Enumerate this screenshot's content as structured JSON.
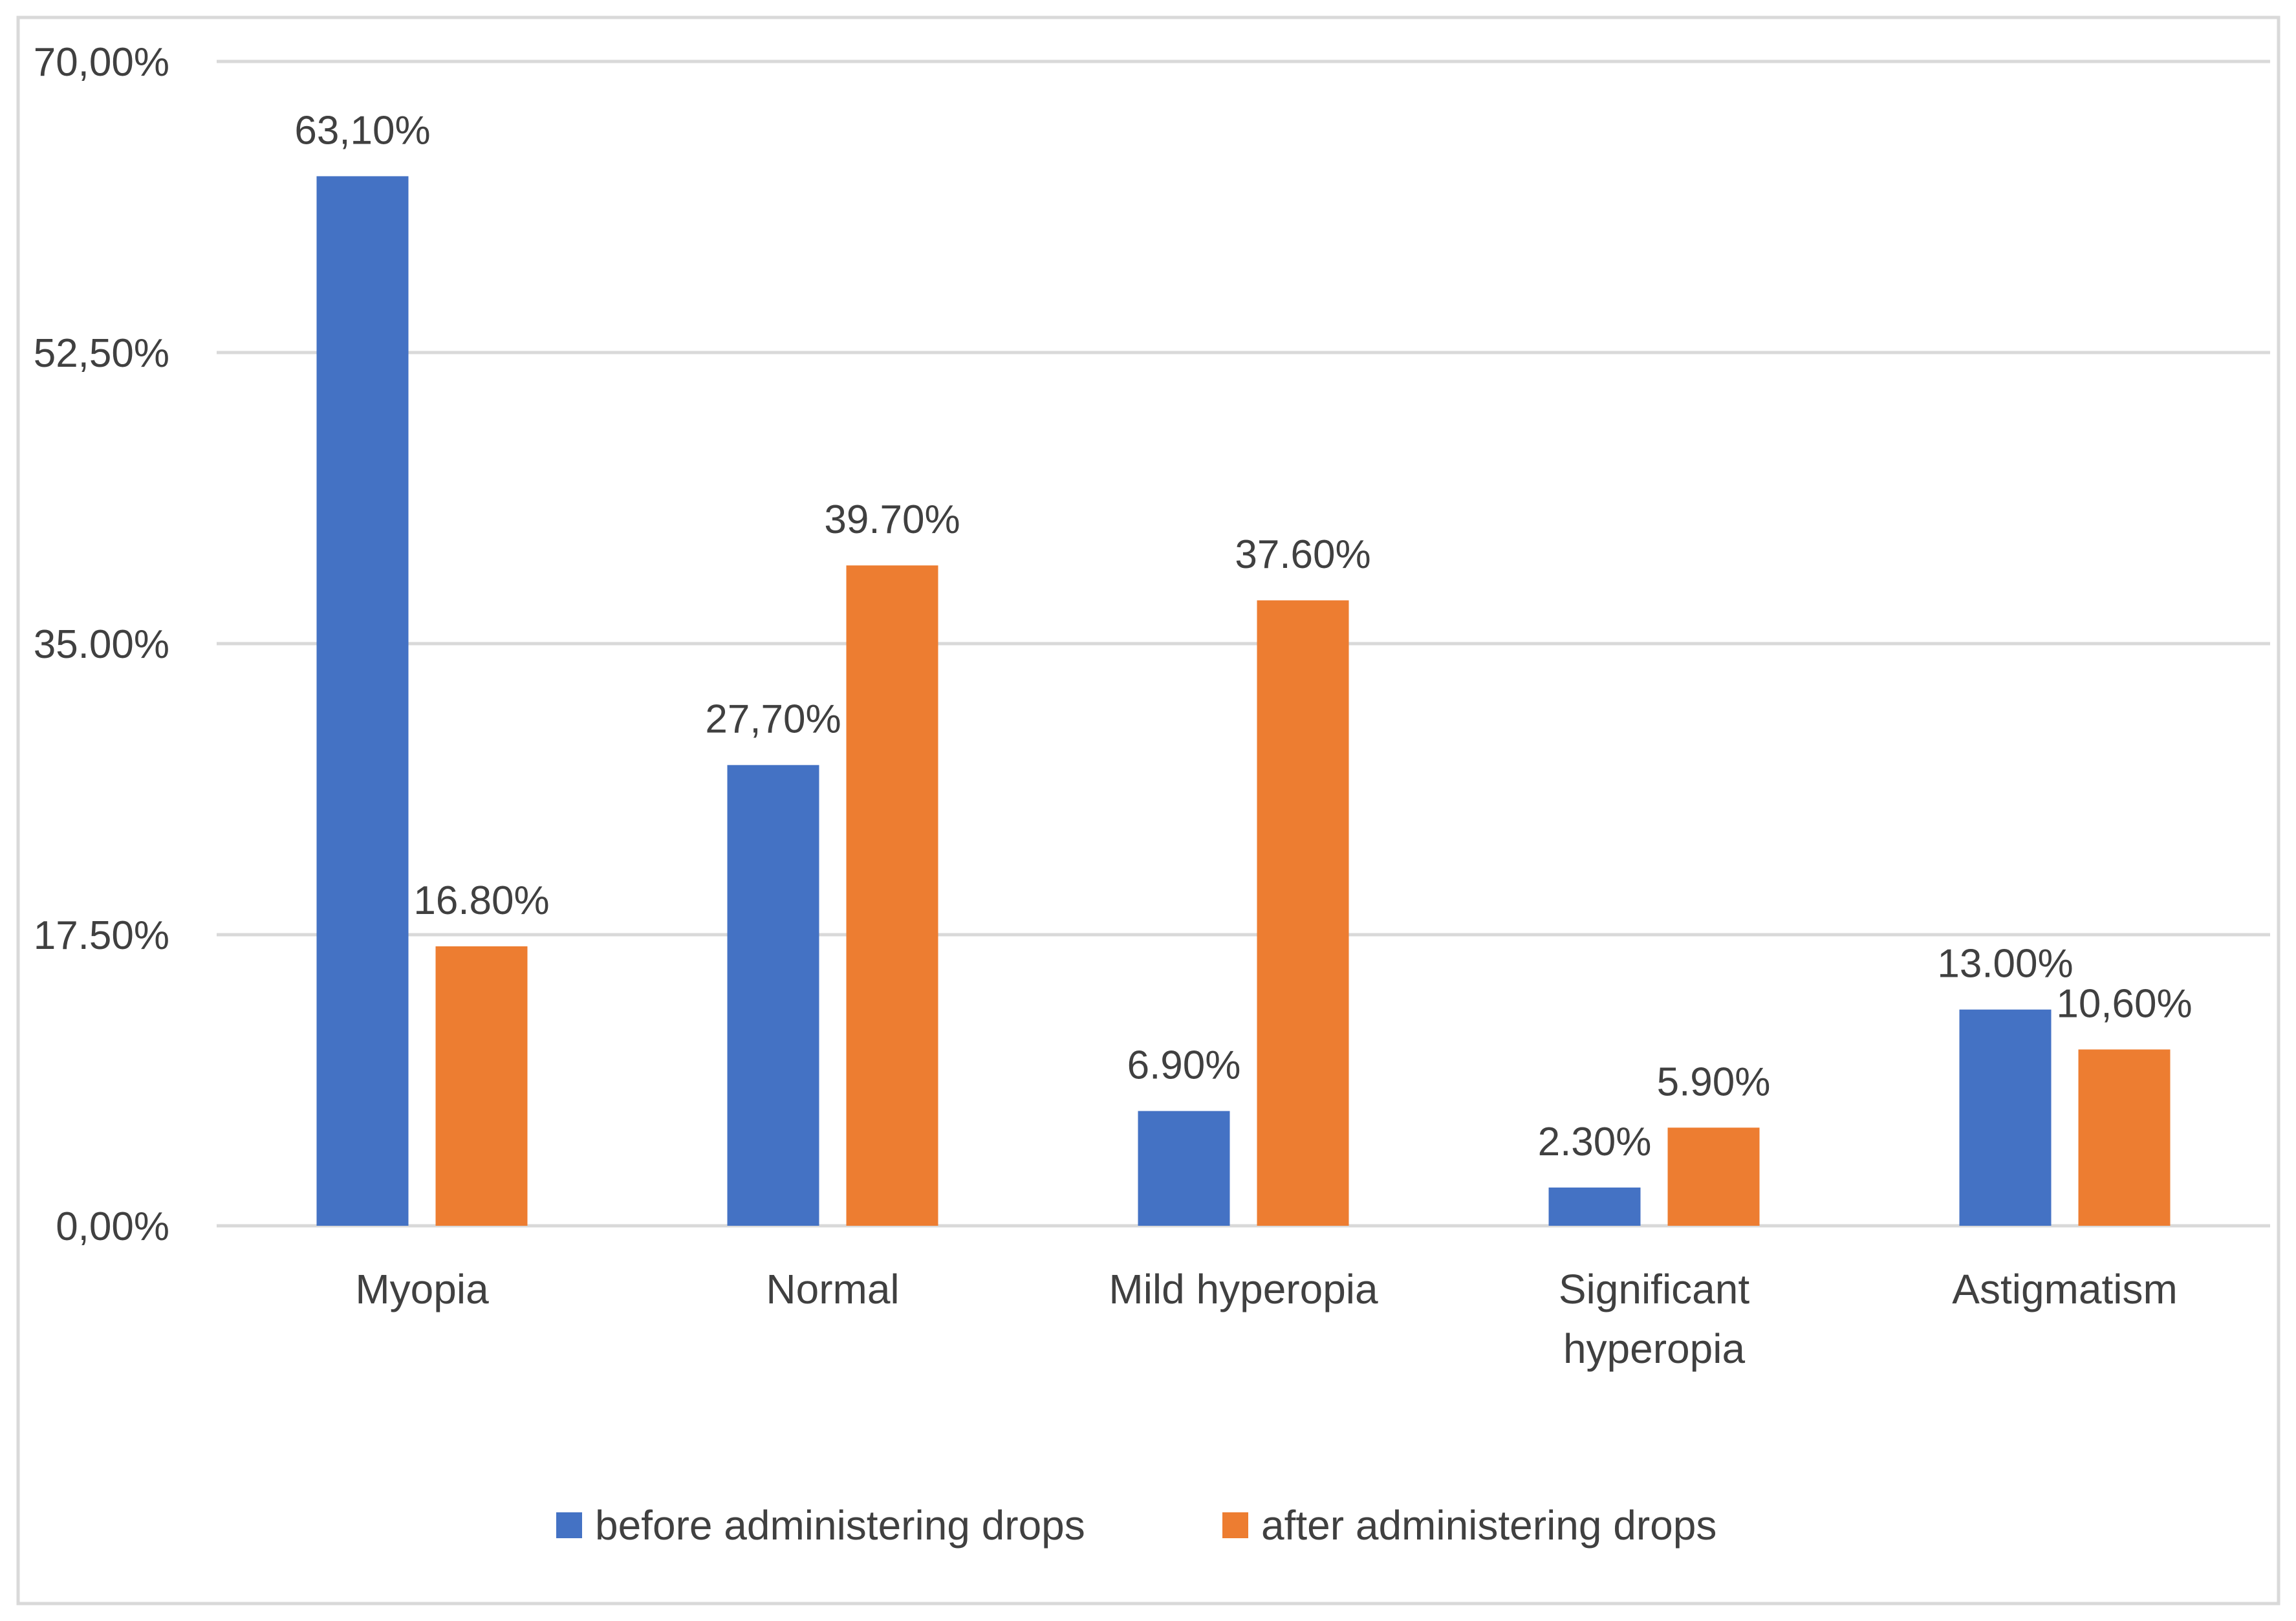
{
  "chart_data": {
    "type": "bar",
    "title": "",
    "xlabel": "",
    "ylabel": "",
    "ylim": [
      0,
      70
    ],
    "yticks": [
      0,
      17.5,
      35,
      52.5,
      70
    ],
    "ytick_labels": [
      "0,00%",
      "17.50%",
      "35.00%",
      "52,50%",
      "70,00%"
    ],
    "grid": true,
    "legend_position": "bottom",
    "categories": [
      [
        "Myopia"
      ],
      [
        "Normal"
      ],
      [
        "Mild hyperopia"
      ],
      [
        "Significant",
        "hyperopia"
      ],
      [
        "Astigmatism"
      ]
    ],
    "series": [
      {
        "name": "before administering drops",
        "color": "#4472C4",
        "values": [
          63.1,
          27.7,
          6.9,
          2.3,
          13.0
        ],
        "labels": [
          "63,10%",
          "27,70%",
          "6.90%",
          "2.30%",
          "13.00%"
        ]
      },
      {
        "name": "after administering drops",
        "color": "#ED7D31",
        "values": [
          16.8,
          39.7,
          37.6,
          5.9,
          10.6
        ],
        "labels": [
          "16.80%",
          "39.70%",
          "37.60%",
          "5.90%",
          "10,60%"
        ]
      }
    ],
    "colors": {
      "grid": "#D9D9D9",
      "text": "#404040",
      "border": "#D9D9D9"
    }
  }
}
